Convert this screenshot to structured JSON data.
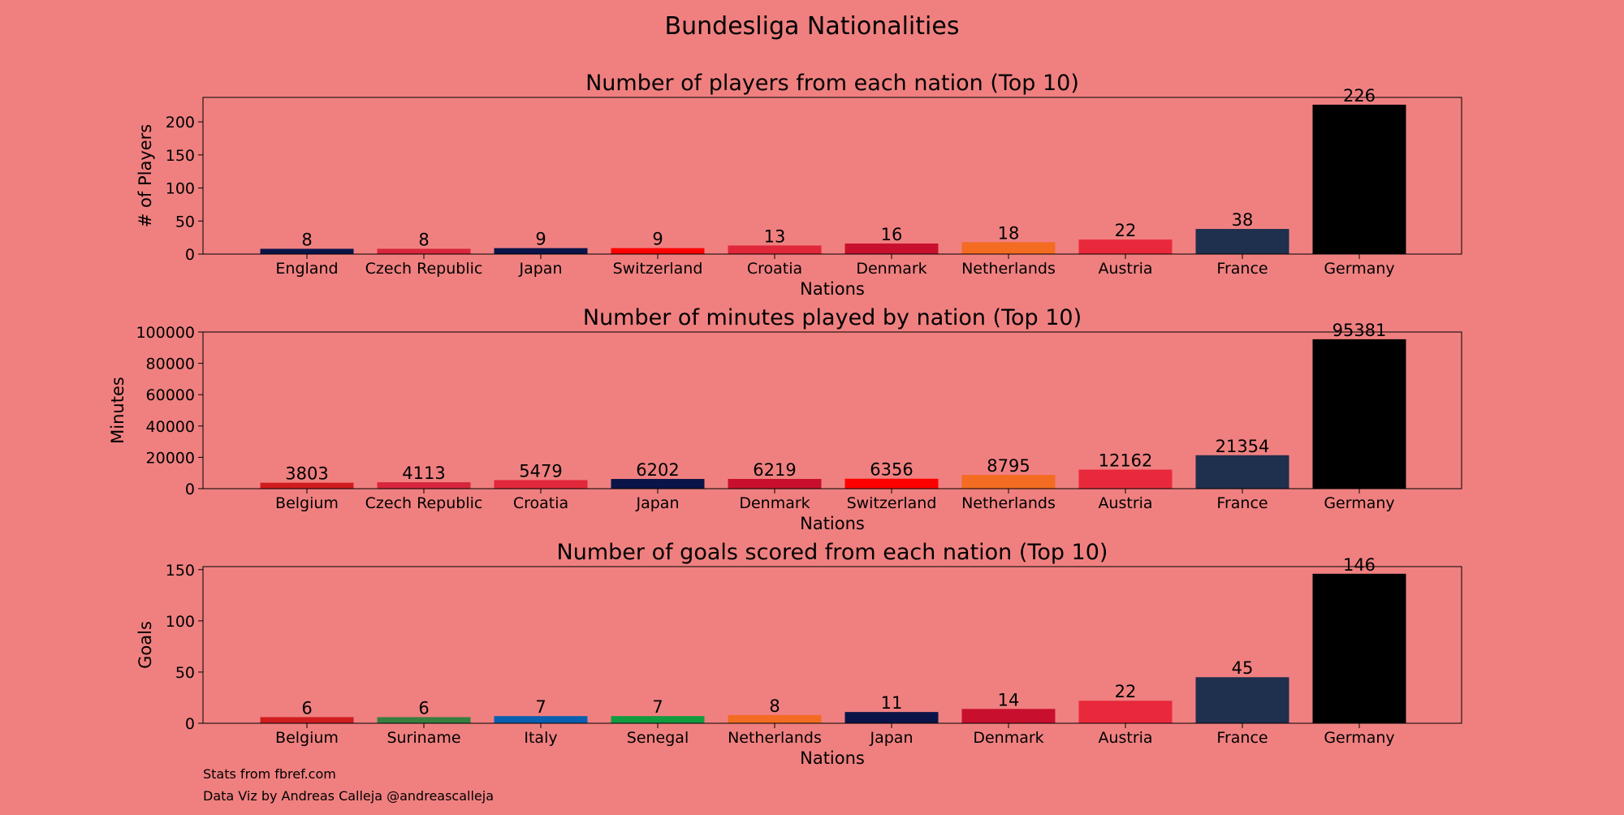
{
  "figure": {
    "title": "Bundesliga Nationalities",
    "background": "#f08080"
  },
  "credits": {
    "source": "Stats from fbref.com",
    "author": "Data Viz by Andreas Calleja @andreascalleja"
  },
  "chart_data": [
    {
      "type": "bar",
      "title": "Number of players from each nation (Top 10)",
      "xlabel": "Nations",
      "ylabel": "# of Players",
      "ylim": [
        0,
        237
      ],
      "yticks": [
        0,
        50,
        100,
        150,
        200
      ],
      "categories": [
        "England",
        "Czech Republic",
        "Japan",
        "Switzerland",
        "Croatia",
        "Denmark",
        "Netherlands",
        "Austria",
        "France",
        "Germany"
      ],
      "values": [
        8,
        8,
        9,
        9,
        13,
        16,
        18,
        22,
        38,
        226
      ],
      "colors": [
        "#0b1448",
        "#d7263d",
        "#0b1448",
        "#ff0000",
        "#e0283a",
        "#c8102e",
        "#f36c21",
        "#e8293b",
        "#1f2f4e",
        "#000000"
      ],
      "value_labels": true,
      "grid": false
    },
    {
      "type": "bar",
      "title": "Number of minutes played by nation (Top 10)",
      "xlabel": "Nations",
      "ylabel": "Minutes",
      "ylim": [
        0,
        100000
      ],
      "yticks": [
        0,
        20000,
        40000,
        60000,
        80000,
        100000
      ],
      "categories": [
        "Belgium",
        "Czech Republic",
        "Croatia",
        "Japan",
        "Denmark",
        "Switzerland",
        "Netherlands",
        "Austria",
        "France",
        "Germany"
      ],
      "values": [
        3803,
        4113,
        5479,
        6202,
        6219,
        6356,
        8795,
        12162,
        21354,
        95381
      ],
      "colors": [
        "#d01c1f",
        "#d7263d",
        "#e0283a",
        "#0b1448",
        "#c8102e",
        "#ff0000",
        "#f36c21",
        "#e8293b",
        "#1f2f4e",
        "#000000"
      ],
      "value_labels": true,
      "grid": false
    },
    {
      "type": "bar",
      "title": "Number of goals scored from each nation (Top 10)",
      "xlabel": "Nations",
      "ylabel": "Goals",
      "ylim": [
        0,
        153
      ],
      "yticks": [
        0,
        50,
        100,
        150
      ],
      "categories": [
        "Belgium",
        "Suriname",
        "Italy",
        "Senegal",
        "Netherlands",
        "Japan",
        "Denmark",
        "Austria",
        "France",
        "Germany"
      ],
      "values": [
        6,
        6,
        7,
        7,
        8,
        11,
        14,
        22,
        45,
        146
      ],
      "colors": [
        "#d01c1f",
        "#377e3f",
        "#0b5fb0",
        "#119b3f",
        "#f36c21",
        "#0b1448",
        "#c8102e",
        "#e8293b",
        "#1f2f4e",
        "#000000"
      ],
      "value_labels": true,
      "grid": false
    }
  ]
}
